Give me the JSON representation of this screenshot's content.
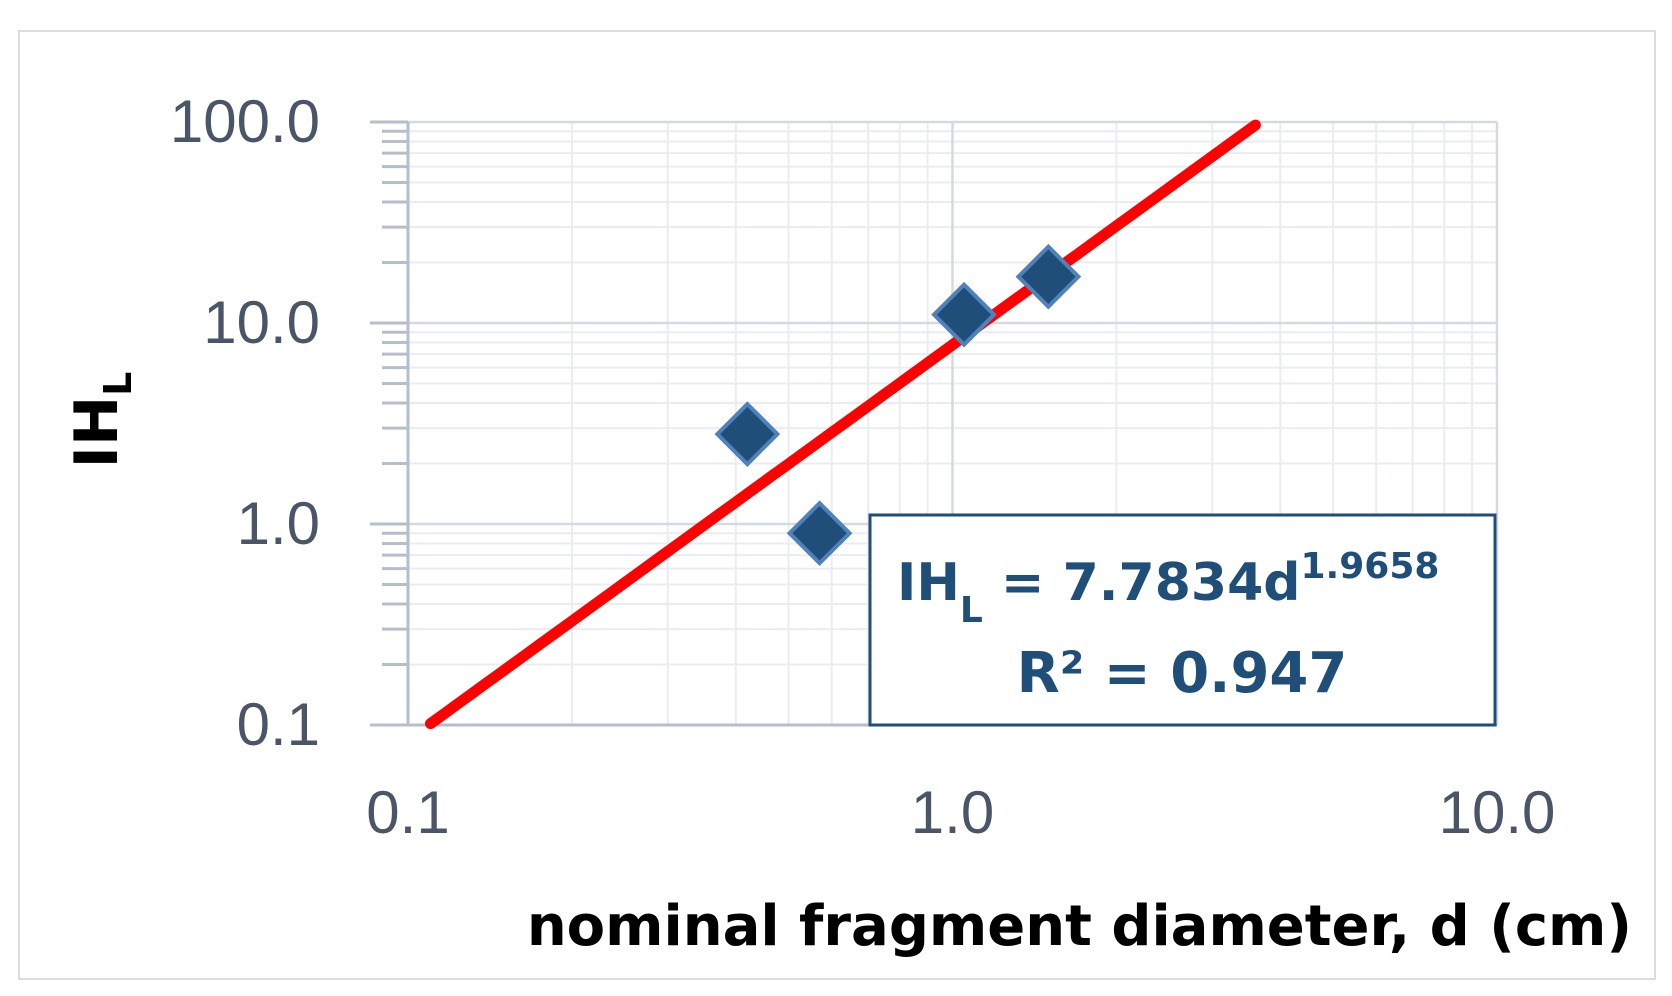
{
  "chart_data": {
    "type": "scatter",
    "title": "",
    "xlabel": "nominal fragment diameter, d (cm)",
    "ylabel": {
      "main": "IH",
      "sub": "L"
    },
    "x_scale": "log",
    "y_scale": "log",
    "xlim": [
      0.1,
      10
    ],
    "ylim": [
      0.1,
      100
    ],
    "x_tick_labels": [
      "0.1",
      "1.0",
      "10.0"
    ],
    "y_tick_labels": [
      "0.1",
      "1.0",
      "10.0",
      "100.0"
    ],
    "grid": true,
    "series": [
      {
        "marker": "diamond",
        "color": "#1f4e79",
        "points": [
          {
            "x": 0.42,
            "y": 2.8
          },
          {
            "x": 0.57,
            "y": 0.9
          },
          {
            "x": 1.05,
            "y": 11.0
          },
          {
            "x": 1.5,
            "y": 17.0
          }
        ]
      }
    ],
    "trendline": {
      "type": "power",
      "coefficient": 7.7834,
      "exponent": 1.9658,
      "x_start": 0.11,
      "x_end": 3.6,
      "color": "#ff0000"
    },
    "equation_box": {
      "lhs_main": "IH",
      "lhs_sub": "L",
      "rhs": " = 7.7834d",
      "exponent": "1.9658",
      "r_squared": "R² = 0.947",
      "border_color": "#1f4e79",
      "text_color": "#1f4e79"
    }
  }
}
